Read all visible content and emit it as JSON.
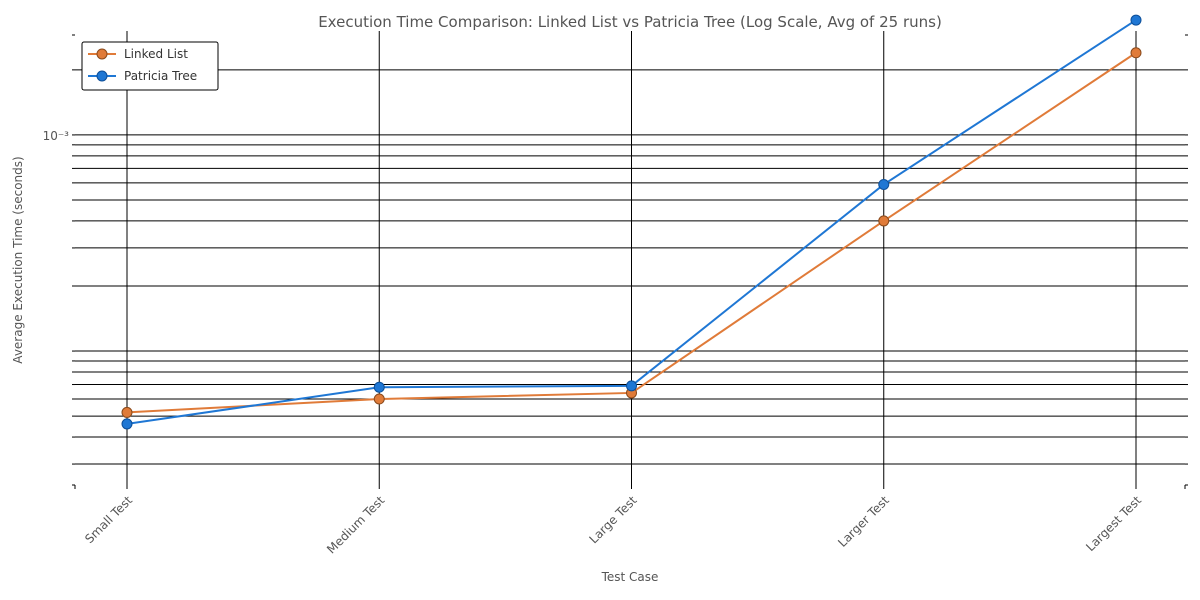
{
  "chart_data": {
    "type": "line",
    "title": "Execution Time Comparison: Linked List vs Patricia Tree (Log Scale, Avg of 25 runs)",
    "xlabel": "Test Case",
    "ylabel": "Average Execution Time (seconds)",
    "yscale": "log",
    "ylim": [
      2.4e-05,
      0.0029
    ],
    "categories": [
      "Small Test",
      "Medium Test",
      "Large Test",
      "Larger Test",
      "Largest Test"
    ],
    "y_tick_labels": [
      {
        "value": 0.001,
        "label": "10⁻³"
      }
    ],
    "series": [
      {
        "name": "Linked List",
        "color": "#e07b39",
        "values": [
          5.2e-05,
          6e-05,
          6.4e-05,
          0.0004,
          0.0024
        ]
      },
      {
        "name": "Patricia Tree",
        "color": "#1f77d4",
        "values": [
          4.6e-05,
          6.8e-05,
          6.9e-05,
          0.00059,
          0.0034
        ]
      }
    ],
    "grid": true,
    "legend": "top-left"
  }
}
